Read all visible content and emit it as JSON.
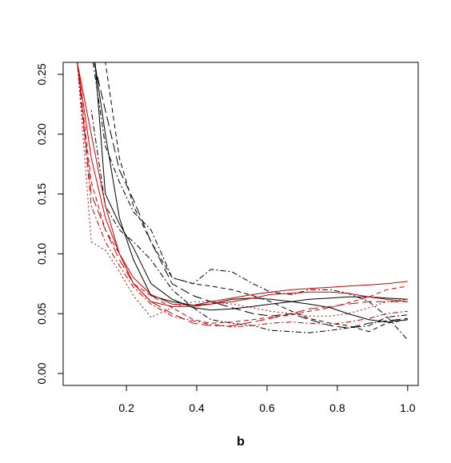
{
  "chart_data": {
    "type": "line",
    "title": "",
    "xlabel": "b",
    "ylabel": "",
    "xlim": [
      0.02,
      1.03
    ],
    "ylim": [
      -0.01,
      0.26
    ],
    "x_ticks": [
      0.2,
      0.4,
      0.6,
      0.8,
      1.0
    ],
    "x_tick_labels": [
      "0.2",
      "0.4",
      "0.6",
      "0.8",
      "1.0"
    ],
    "y_ticks": [
      0.0,
      0.05,
      0.1,
      0.15,
      0.2,
      0.25
    ],
    "y_tick_labels": [
      "0.00",
      "0.05",
      "0.10",
      "0.15",
      "0.20",
      "0.25"
    ],
    "grid": false,
    "legend": "none",
    "x": [
      0.06,
      0.1,
      0.14,
      0.18,
      0.22,
      0.27,
      0.33,
      0.39,
      0.44,
      0.5,
      0.56,
      0.61,
      0.67,
      0.72,
      0.78,
      0.83,
      0.89,
      0.94,
      1.0
    ],
    "series": [
      {
        "color": "#000000",
        "dash": "solid",
        "values": [
          null,
          0.3,
          0.15,
          0.125,
          0.105,
          0.075,
          0.062,
          0.055,
          0.053,
          0.054,
          0.056,
          0.058,
          0.06,
          0.062,
          0.063,
          0.064,
          0.064,
          0.063,
          0.062
        ]
      },
      {
        "color": "#000000",
        "dash": "solid",
        "values": [
          null,
          0.28,
          0.2,
          0.13,
          0.095,
          0.065,
          0.06,
          0.057,
          0.058,
          0.062,
          0.063,
          0.062,
          0.06,
          0.058,
          0.055,
          0.05,
          0.045,
          0.043,
          0.045
        ]
      },
      {
        "color": "#000000",
        "dash": "dashdot",
        "values": [
          null,
          0.27,
          0.19,
          0.16,
          0.135,
          0.12,
          0.08,
          0.075,
          0.087,
          0.085,
          0.075,
          0.068,
          0.066,
          0.07,
          0.07,
          0.067,
          0.06,
          0.048,
          0.028
        ]
      },
      {
        "color": "#000000",
        "dash": "dashed",
        "values": [
          null,
          0.3,
          0.26,
          0.18,
          0.14,
          0.11,
          0.08,
          0.075,
          0.073,
          0.07,
          0.065,
          0.06,
          0.052,
          0.046,
          0.042,
          0.04,
          0.035,
          0.042,
          0.045
        ]
      },
      {
        "color": "#000000",
        "dash": "longdash",
        "values": [
          null,
          0.27,
          0.22,
          0.17,
          0.145,
          0.11,
          0.075,
          0.065,
          0.06,
          0.055,
          0.05,
          0.048,
          0.05,
          0.045,
          0.04,
          0.038,
          0.042,
          0.044,
          0.046
        ]
      },
      {
        "color": "#000000",
        "dash": "dotdash",
        "values": [
          null,
          0.22,
          0.14,
          0.12,
          0.11,
          0.095,
          0.07,
          0.055,
          0.045,
          0.042,
          0.04,
          0.036,
          0.035,
          0.034,
          0.036,
          0.038,
          0.04,
          0.047,
          0.049
        ]
      },
      {
        "color": "#cc0000",
        "dash": "solid",
        "values": [
          0.26,
          0.2,
          0.14,
          0.1,
          0.08,
          0.066,
          0.058,
          0.057,
          0.06,
          0.063,
          0.066,
          0.068,
          0.07,
          0.071,
          0.072,
          0.073,
          0.074,
          0.075,
          0.077
        ]
      },
      {
        "color": "#cc0000",
        "dash": "solid",
        "values": [
          0.26,
          0.18,
          0.13,
          0.1,
          0.075,
          0.06,
          0.056,
          0.056,
          0.058,
          0.06,
          0.063,
          0.066,
          0.067,
          0.068,
          0.068,
          0.067,
          0.064,
          0.062,
          0.06
        ]
      },
      {
        "color": "#cc0000",
        "dash": "dotted",
        "values": [
          0.26,
          0.11,
          0.103,
          0.085,
          0.065,
          0.047,
          0.055,
          0.06,
          0.06,
          0.058,
          0.055,
          0.052,
          0.05,
          0.048,
          0.048,
          0.05,
          0.055,
          0.06,
          0.062
        ]
      },
      {
        "color": "#cc0000",
        "dash": "dashed",
        "values": [
          0.26,
          0.16,
          0.12,
          0.1,
          0.075,
          0.065,
          0.055,
          0.045,
          0.042,
          0.043,
          0.045,
          0.047,
          0.049,
          0.052,
          0.055,
          0.059,
          0.064,
          0.07,
          0.073
        ]
      },
      {
        "color": "#cc0000",
        "dash": "longdash",
        "values": [
          0.26,
          0.15,
          0.12,
          0.095,
          0.075,
          0.06,
          0.05,
          0.042,
          0.04,
          0.04,
          0.043,
          0.046,
          0.05,
          0.054,
          0.056,
          0.058,
          0.06,
          0.06,
          0.06
        ]
      },
      {
        "color": "#cc0000",
        "dash": "dotdash",
        "values": [
          0.26,
          0.14,
          0.11,
          0.09,
          0.072,
          0.058,
          0.048,
          0.044,
          0.041,
          0.039,
          0.04,
          0.042,
          0.043,
          0.042,
          0.041,
          0.043,
          0.046,
          0.05,
          0.052
        ]
      }
    ]
  }
}
